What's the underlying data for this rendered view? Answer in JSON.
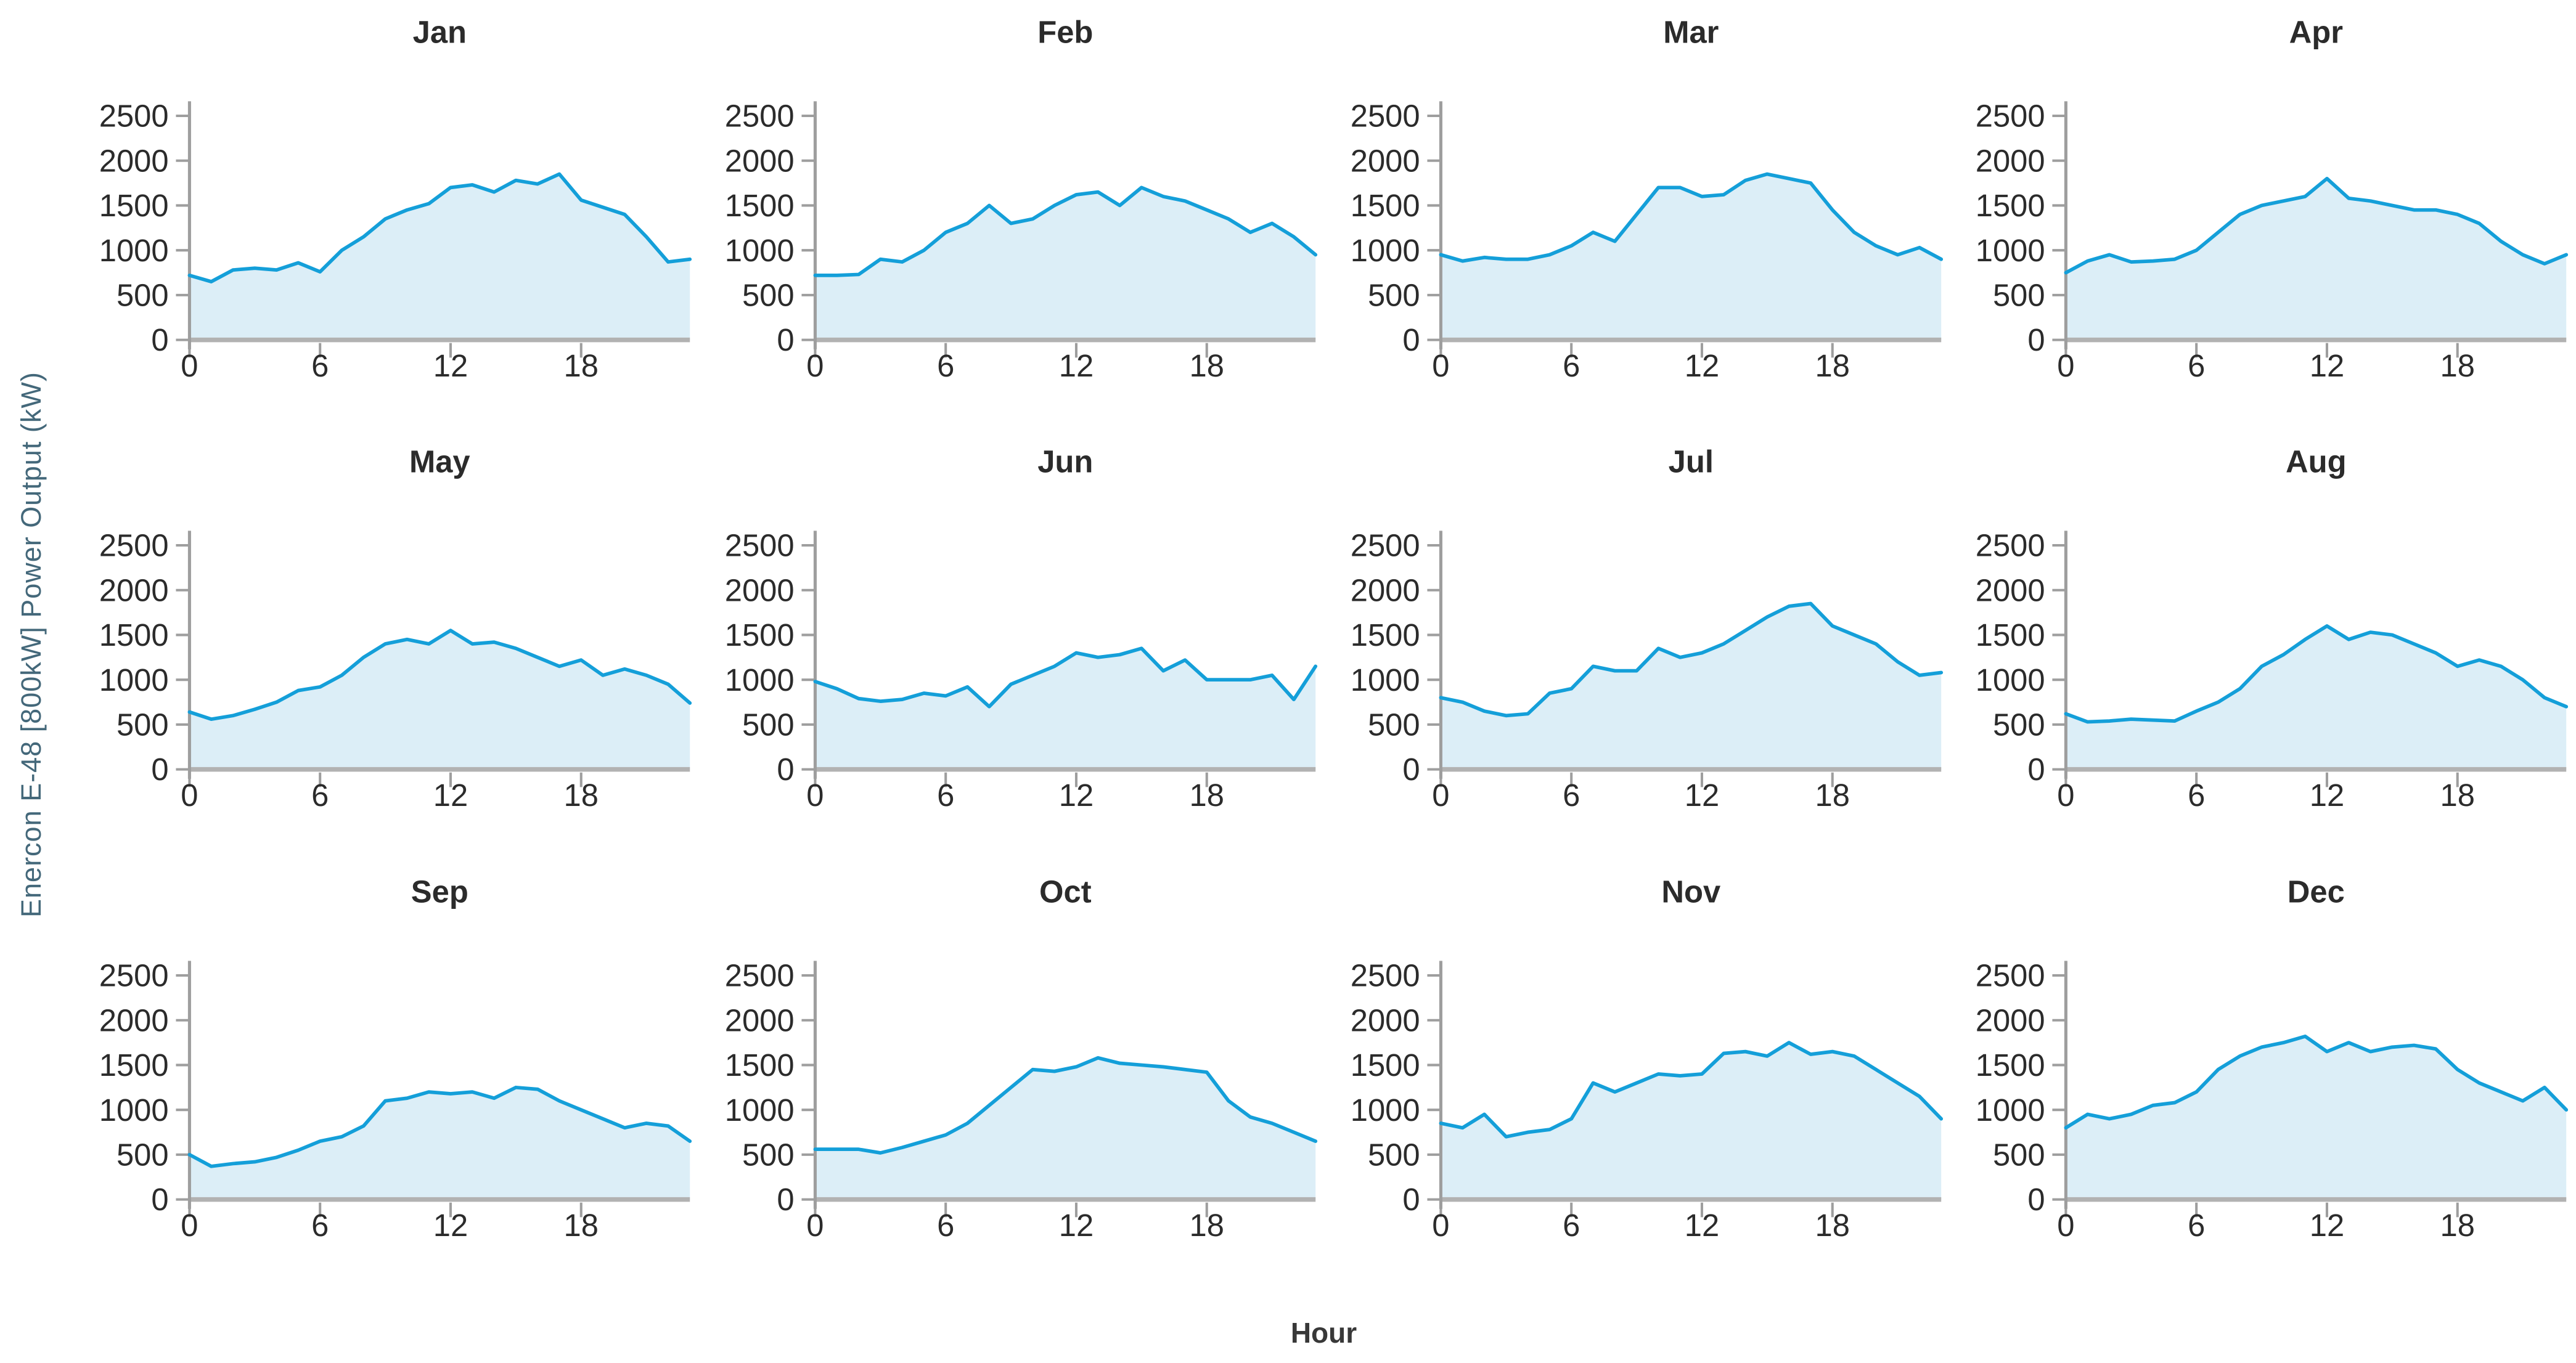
{
  "figure": {
    "xlabel": "Hour",
    "ylabel": "Enercon E-48 [800kW] Power Output (kW)"
  },
  "chart_data": {
    "type": "area",
    "layout": "small-multiples 3 rows x 4 cols, one panel per month",
    "title": "",
    "xlabel": "Hour",
    "ylabel": "Enercon E-48 [800kW] Power Output (kW)",
    "x": [
      0,
      1,
      2,
      3,
      4,
      5,
      6,
      7,
      8,
      9,
      10,
      11,
      12,
      13,
      14,
      15,
      16,
      17,
      18,
      19,
      20,
      21,
      22,
      23
    ],
    "xlim": [
      0,
      23
    ],
    "ylim": [
      0,
      2500
    ],
    "xticks": [
      0,
      6,
      12,
      18
    ],
    "yticks": [
      0,
      500,
      1000,
      1500,
      2000,
      2500
    ],
    "grid": false,
    "legend": "none",
    "colors": {
      "line": "#149fd9",
      "fill": "#dceef7",
      "axis": "#9e9e9e",
      "baseline": "#b2b2b2",
      "tick": "#9e9e9e",
      "text": "#2b2b2b",
      "ylabel_text": "#44687a"
    },
    "series": [
      {
        "name": "Jan",
        "values": [
          720,
          650,
          780,
          800,
          780,
          860,
          760,
          1000,
          1150,
          1350,
          1450,
          1520,
          1700,
          1730,
          1650,
          1780,
          1740,
          1850,
          1560,
          1480,
          1400,
          1150,
          870,
          900
        ]
      },
      {
        "name": "Feb",
        "values": [
          720,
          720,
          730,
          900,
          870,
          1000,
          1200,
          1300,
          1500,
          1300,
          1350,
          1500,
          1620,
          1650,
          1500,
          1700,
          1600,
          1550,
          1450,
          1350,
          1200,
          1300,
          1150,
          950
        ]
      },
      {
        "name": "Mar",
        "values": [
          950,
          880,
          920,
          900,
          900,
          950,
          1050,
          1200,
          1100,
          1400,
          1700,
          1700,
          1600,
          1620,
          1780,
          1850,
          1800,
          1750,
          1450,
          1200,
          1050,
          950,
          1030,
          900
        ]
      },
      {
        "name": "Apr",
        "values": [
          750,
          880,
          950,
          870,
          880,
          900,
          1000,
          1200,
          1400,
          1500,
          1550,
          1600,
          1800,
          1580,
          1550,
          1500,
          1450,
          1450,
          1400,
          1300,
          1100,
          950,
          850,
          950
        ]
      },
      {
        "name": "May",
        "values": [
          640,
          560,
          600,
          670,
          750,
          880,
          920,
          1050,
          1250,
          1400,
          1450,
          1400,
          1550,
          1400,
          1420,
          1350,
          1250,
          1150,
          1220,
          1050,
          1120,
          1050,
          950,
          740
        ]
      },
      {
        "name": "Jun",
        "values": [
          980,
          900,
          790,
          760,
          780,
          850,
          820,
          920,
          700,
          950,
          1050,
          1150,
          1300,
          1250,
          1280,
          1350,
          1100,
          1220,
          1000,
          1000,
          1000,
          1050,
          780,
          1150
        ]
      },
      {
        "name": "Jul",
        "values": [
          800,
          750,
          650,
          600,
          620,
          850,
          900,
          1150,
          1100,
          1100,
          1350,
          1250,
          1300,
          1400,
          1550,
          1700,
          1820,
          1850,
          1600,
          1500,
          1400,
          1200,
          1050,
          1080
        ]
      },
      {
        "name": "Aug",
        "values": [
          620,
          530,
          540,
          560,
          550,
          540,
          650,
          750,
          900,
          1150,
          1280,
          1450,
          1600,
          1450,
          1530,
          1500,
          1400,
          1300,
          1150,
          1220,
          1150,
          1000,
          800,
          700
        ]
      },
      {
        "name": "Sep",
        "values": [
          500,
          370,
          400,
          420,
          470,
          550,
          650,
          700,
          820,
          1100,
          1130,
          1200,
          1180,
          1200,
          1130,
          1250,
          1230,
          1100,
          1000,
          900,
          800,
          850,
          820,
          650
        ]
      },
      {
        "name": "Oct",
        "values": [
          560,
          560,
          560,
          520,
          580,
          650,
          720,
          850,
          1050,
          1250,
          1450,
          1430,
          1480,
          1580,
          1520,
          1500,
          1480,
          1450,
          1420,
          1100,
          920,
          850,
          750,
          650
        ]
      },
      {
        "name": "Nov",
        "values": [
          850,
          800,
          950,
          700,
          750,
          780,
          900,
          1300,
          1200,
          1300,
          1400,
          1380,
          1400,
          1630,
          1650,
          1600,
          1750,
          1620,
          1650,
          1600,
          1450,
          1300,
          1150,
          900
        ]
      },
      {
        "name": "Dec",
        "values": [
          800,
          950,
          900,
          950,
          1050,
          1080,
          1200,
          1450,
          1600,
          1700,
          1750,
          1820,
          1650,
          1750,
          1650,
          1700,
          1720,
          1680,
          1450,
          1300,
          1200,
          1100,
          1250,
          1000
        ]
      }
    ]
  }
}
